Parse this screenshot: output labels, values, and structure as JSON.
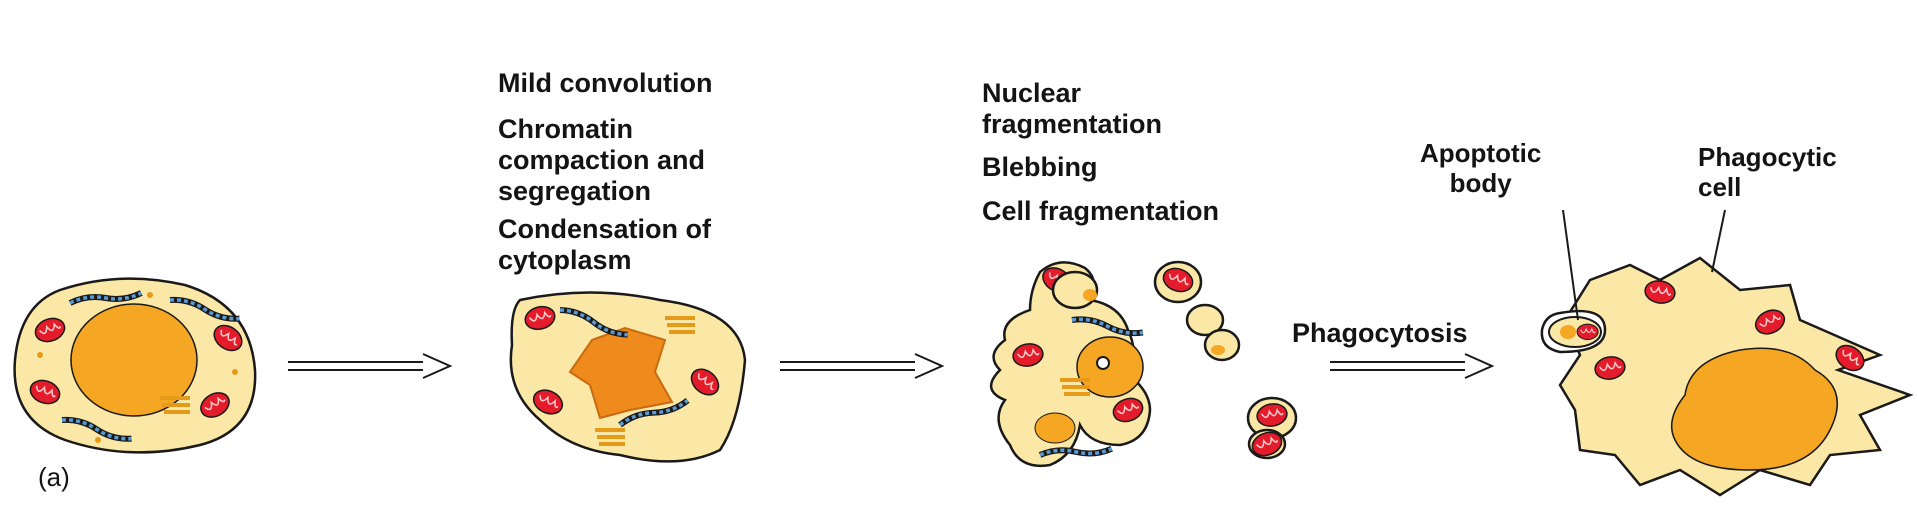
{
  "stage2_labels": {
    "l1": "Mild convolution",
    "l2": "Chromatin\ncompaction and\nsegregation",
    "l3": "Condensation of\ncytoplasm"
  },
  "stage3_labels": {
    "l1": "Nuclear\nfragmentation",
    "l2": "Blebbing",
    "l3": "Cell fragmentation"
  },
  "stage4_labels": {
    "apoptotic_body": "Apoptotic\nbody",
    "phagocytic_cell": "Phagocytic\ncell"
  },
  "arrow3_label": "Phagocytosis",
  "panel_label": "(a)",
  "colors": {
    "cytoplasm": "#fbe7a6",
    "nucleus": "#f5a623",
    "condensed_nucleus": "#ef8a1c",
    "mitochondria": "#e31b2b",
    "er": "#5b9bd5",
    "golgi": "#f7b733",
    "outline": "#1a1a1a"
  }
}
